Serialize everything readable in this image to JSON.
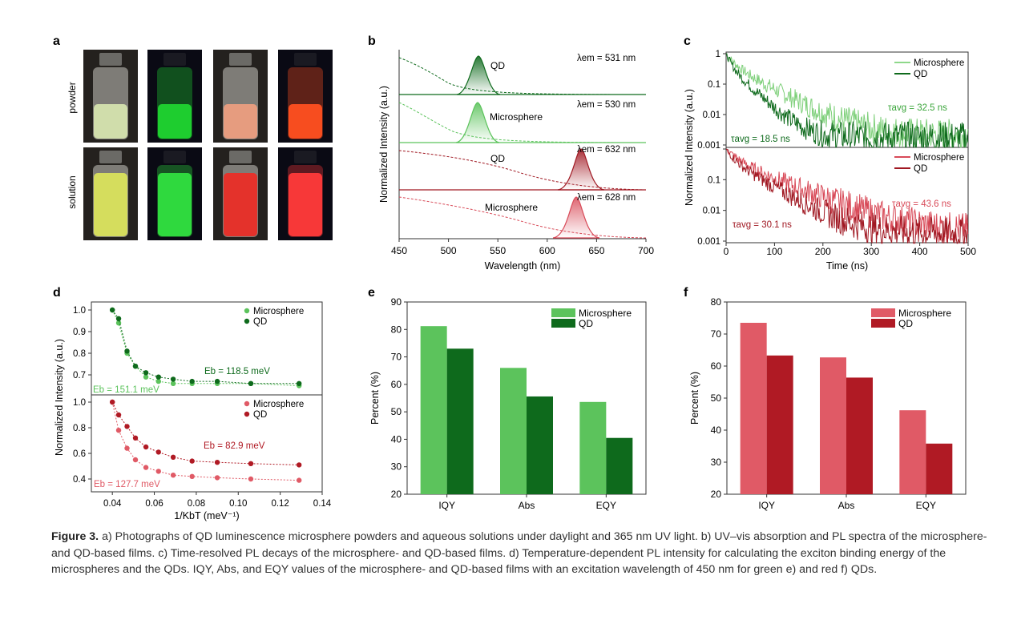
{
  "panels": {
    "a": {
      "letter": "a",
      "row_labels": [
        "powder",
        "solution"
      ],
      "vials": [
        [
          "#d9e8b0",
          "#20d430",
          "#f2a080",
          "#ff5020"
        ],
        [
          "#dfe85a",
          "#30e040",
          "#f02a22",
          "#ff3a3a"
        ]
      ],
      "glow": [
        [
          false,
          true,
          false,
          true
        ],
        [
          false,
          true,
          false,
          true
        ]
      ]
    },
    "b": {
      "letter": "b",
      "xlabel": "Wavelength (nm)",
      "ylabel": "Normalized Intensity (a.u.)",
      "labels": [
        "QD",
        "Microsphere",
        "QD",
        "Microsphere"
      ],
      "em": [
        "λem = 531 nm",
        "λem = 530 nm",
        "λem = 632 nm",
        "λem = 628 nm"
      ]
    },
    "c": {
      "letter": "c",
      "xlabel": "Time (ns)",
      "ylabel": "Normalized Intensity (a.u.)",
      "legend_top": [
        "Microsphere",
        "QD"
      ],
      "legend_bottom": [
        "Microsphere",
        "QD"
      ],
      "tau": [
        "τavg = 32.5 ns",
        "τavg = 18.5 ns",
        "τavg = 43.6 ns",
        "τavg = 30.1 ns"
      ]
    },
    "d": {
      "letter": "d",
      "xlabel": "1/KbT (meV⁻¹)",
      "ylabel": "Normalized Intensity (a.u.)",
      "legend_top": [
        "Microsphere",
        "QD"
      ],
      "legend_bottom": [
        "Microsphere",
        "QD"
      ],
      "eb": [
        "Eb = 118.5 meV",
        "Eb = 151.1 meV",
        "Eb = 82.9 meV",
        "Eb = 127.7 meV"
      ]
    },
    "e": {
      "letter": "e"
    },
    "f": {
      "letter": "f"
    }
  },
  "colors": {
    "green_light": "#5cc35c",
    "green_dark": "#0e6a1c",
    "red_light": "#e05a66",
    "red_dark": "#b01a24"
  },
  "chart_data": [
    {
      "type": "line",
      "panel": "b",
      "x_range": [
        450,
        700
      ],
      "x_ticks": [
        "450",
        "500",
        "550",
        "600",
        "650",
        "700"
      ],
      "series": [
        {
          "name": "QD",
          "peak_nm": 531
        },
        {
          "name": "Microsphere",
          "peak_nm": 530
        },
        {
          "name": "QD",
          "peak_nm": 632
        },
        {
          "name": "Microsphere",
          "peak_nm": 628
        }
      ]
    },
    {
      "type": "line",
      "panel": "c",
      "log_scale": true,
      "x_range": [
        0,
        500
      ],
      "x_ticks": [
        "0",
        "100",
        "200",
        "300",
        "400",
        "500"
      ],
      "y_ticks": [
        "1",
        "0.1",
        "0.01",
        "0.001"
      ],
      "series": [
        {
          "name": "Microsphere",
          "tau_avg_ns": 32.5
        },
        {
          "name": "QD",
          "tau_avg_ns": 18.5
        },
        {
          "name": "Microsphere",
          "tau_avg_ns": 43.6
        },
        {
          "name": "QD",
          "tau_avg_ns": 30.1
        }
      ]
    },
    {
      "type": "scatter",
      "panel": "d",
      "x_range": [
        0.03,
        0.14
      ],
      "x_ticks": [
        "0.04",
        "0.06",
        "0.08",
        "0.10",
        "0.12",
        "0.14"
      ],
      "y_ticks_top": [
        "1.0",
        "0.9",
        "0.8",
        "0.7"
      ],
      "y_ticks_bottom": [
        "1.0",
        "0.8",
        "0.6",
        "0.4"
      ],
      "series": [
        {
          "name": "Microsphere",
          "x": [
            0.04,
            0.043,
            0.047,
            0.051,
            0.056,
            0.062,
            0.069,
            0.078,
            0.09,
            0.106,
            0.129
          ],
          "y": [
            1.0,
            0.94,
            0.8,
            0.74,
            0.69,
            0.67,
            0.66,
            0.66,
            0.66,
            0.66,
            0.65
          ],
          "Eb_meV": 151.1
        },
        {
          "name": "QD",
          "x": [
            0.04,
            0.043,
            0.047,
            0.051,
            0.056,
            0.062,
            0.069,
            0.078,
            0.09,
            0.106,
            0.129
          ],
          "y": [
            1.0,
            0.96,
            0.81,
            0.74,
            0.71,
            0.69,
            0.68,
            0.67,
            0.67,
            0.66,
            0.66
          ],
          "Eb_meV": 118.5
        },
        {
          "name": "Microsphere",
          "x": [
            0.04,
            0.043,
            0.047,
            0.051,
            0.056,
            0.062,
            0.069,
            0.078,
            0.09,
            0.106,
            0.129
          ],
          "y": [
            1.0,
            0.78,
            0.64,
            0.55,
            0.49,
            0.46,
            0.43,
            0.42,
            0.41,
            0.4,
            0.39
          ],
          "Eb_meV": 127.7
        },
        {
          "name": "QD",
          "x": [
            0.04,
            0.043,
            0.047,
            0.051,
            0.056,
            0.062,
            0.069,
            0.078,
            0.09,
            0.106,
            0.129
          ],
          "y": [
            1.0,
            0.9,
            0.81,
            0.72,
            0.65,
            0.61,
            0.57,
            0.54,
            0.53,
            0.52,
            0.51
          ],
          "Eb_meV": 82.9
        }
      ]
    },
    {
      "type": "bar",
      "panel": "e",
      "categories": [
        "IQY",
        "Abs",
        "EQY"
      ],
      "ylabel": "Percent (%)",
      "ylim": [
        20,
        90
      ],
      "y_ticks": [
        "20",
        "30",
        "40",
        "50",
        "60",
        "70",
        "80",
        "90"
      ],
      "series": [
        {
          "name": "Microsphere",
          "values": [
            81.2,
            66.0,
            53.6
          ]
        },
        {
          "name": "QD",
          "values": [
            73.0,
            55.6,
            40.5
          ]
        }
      ]
    },
    {
      "type": "bar",
      "panel": "f",
      "categories": [
        "IQY",
        "Abs",
        "EQY"
      ],
      "ylabel": "Percent (%)",
      "ylim": [
        20,
        80
      ],
      "y_ticks": [
        "20",
        "30",
        "40",
        "50",
        "60",
        "70",
        "80"
      ],
      "series": [
        {
          "name": "Microsphere",
          "values": [
            73.5,
            62.7,
            46.2
          ]
        },
        {
          "name": "QD",
          "values": [
            63.3,
            56.4,
            35.8
          ]
        }
      ]
    }
  ],
  "caption": {
    "label": "Figure 3.",
    "text": " a) Photographs of QD luminescence microsphere powders and aqueous solutions under daylight and 365 nm UV light. b) UV–vis absorption and PL spectra of the microsphere- and QD-based films. c) Time-resolved PL decays of the microsphere- and QD-based films. d) Temperature-dependent PL intensity for calculating the exciton binding energy of the microspheres and the QDs. IQY, Abs, and EQY values of the microsphere- and QD-based films with an excitation wavelength of 450 nm for green e) and red f) QDs."
  }
}
